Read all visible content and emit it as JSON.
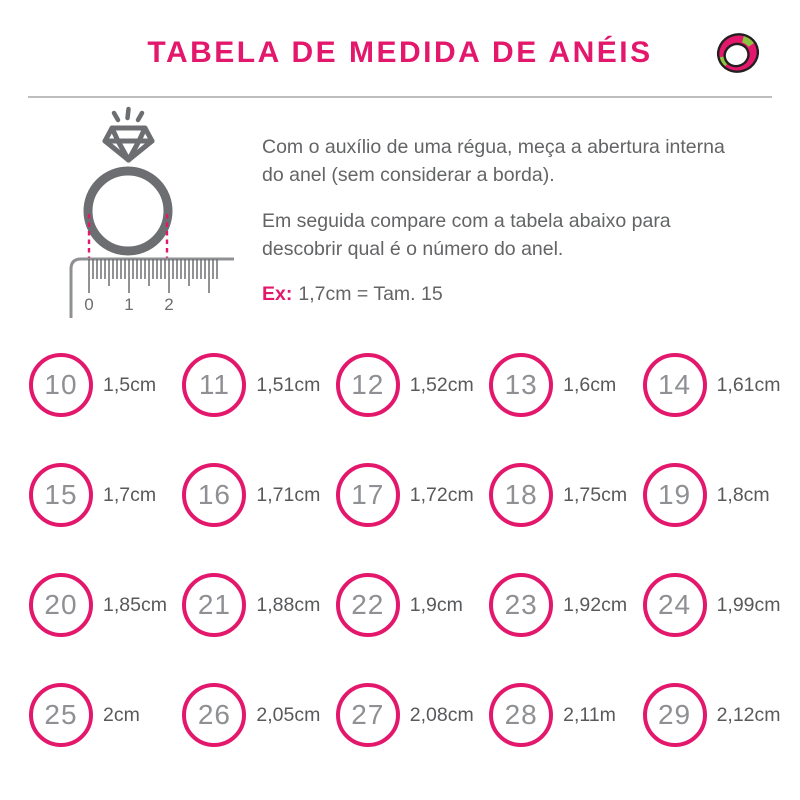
{
  "header": {
    "title": "TABELA DE MEDIDA DE ANÉIS"
  },
  "instructions": {
    "paragraph1": "Com o auxílio de uma régua, meça a abertura interna do anel (sem considerar a borda).",
    "paragraph2": "Em seguida compare com a tabela abaixo para descobrir qual é o número do anel.",
    "example_label": "Ex:",
    "example_text": "1,7cm = Tam. 15"
  },
  "ruler": {
    "labels": [
      "0",
      "1",
      "2"
    ]
  },
  "chart_data": {
    "type": "table",
    "title": "TABELA DE MEDIDA DE ANÉIS",
    "columns": [
      "tamanho_do_anel",
      "abertura_interna"
    ],
    "rows": [
      [
        "10",
        "1,5cm"
      ],
      [
        "11",
        "1,51cm"
      ],
      [
        "12",
        "1,52cm"
      ],
      [
        "13",
        "1,6cm"
      ],
      [
        "14",
        "1,61cm"
      ],
      [
        "15",
        "1,7cm"
      ],
      [
        "16",
        "1,71cm"
      ],
      [
        "17",
        "1,72cm"
      ],
      [
        "18",
        "1,75cm"
      ],
      [
        "19",
        "1,8cm"
      ],
      [
        "20",
        "1,85cm"
      ],
      [
        "21",
        "1,88cm"
      ],
      [
        "22",
        "1,9cm"
      ],
      [
        "23",
        "1,92cm"
      ],
      [
        "24",
        "1,99cm"
      ],
      [
        "25",
        "2cm"
      ],
      [
        "26",
        "2,05cm"
      ],
      [
        "27",
        "2,08cm"
      ],
      [
        "28",
        "2,11m"
      ],
      [
        "29",
        "2,12cm"
      ]
    ]
  },
  "colors": {
    "pink": "#E3186C",
    "green": "#8BC53F",
    "ink": "#231F20",
    "gray-dark": "#6D6E71",
    "gray-mid": "#8E9093",
    "gray-text": "#636466",
    "gray-label": "#58595B",
    "divider": "#BCBEC0"
  }
}
